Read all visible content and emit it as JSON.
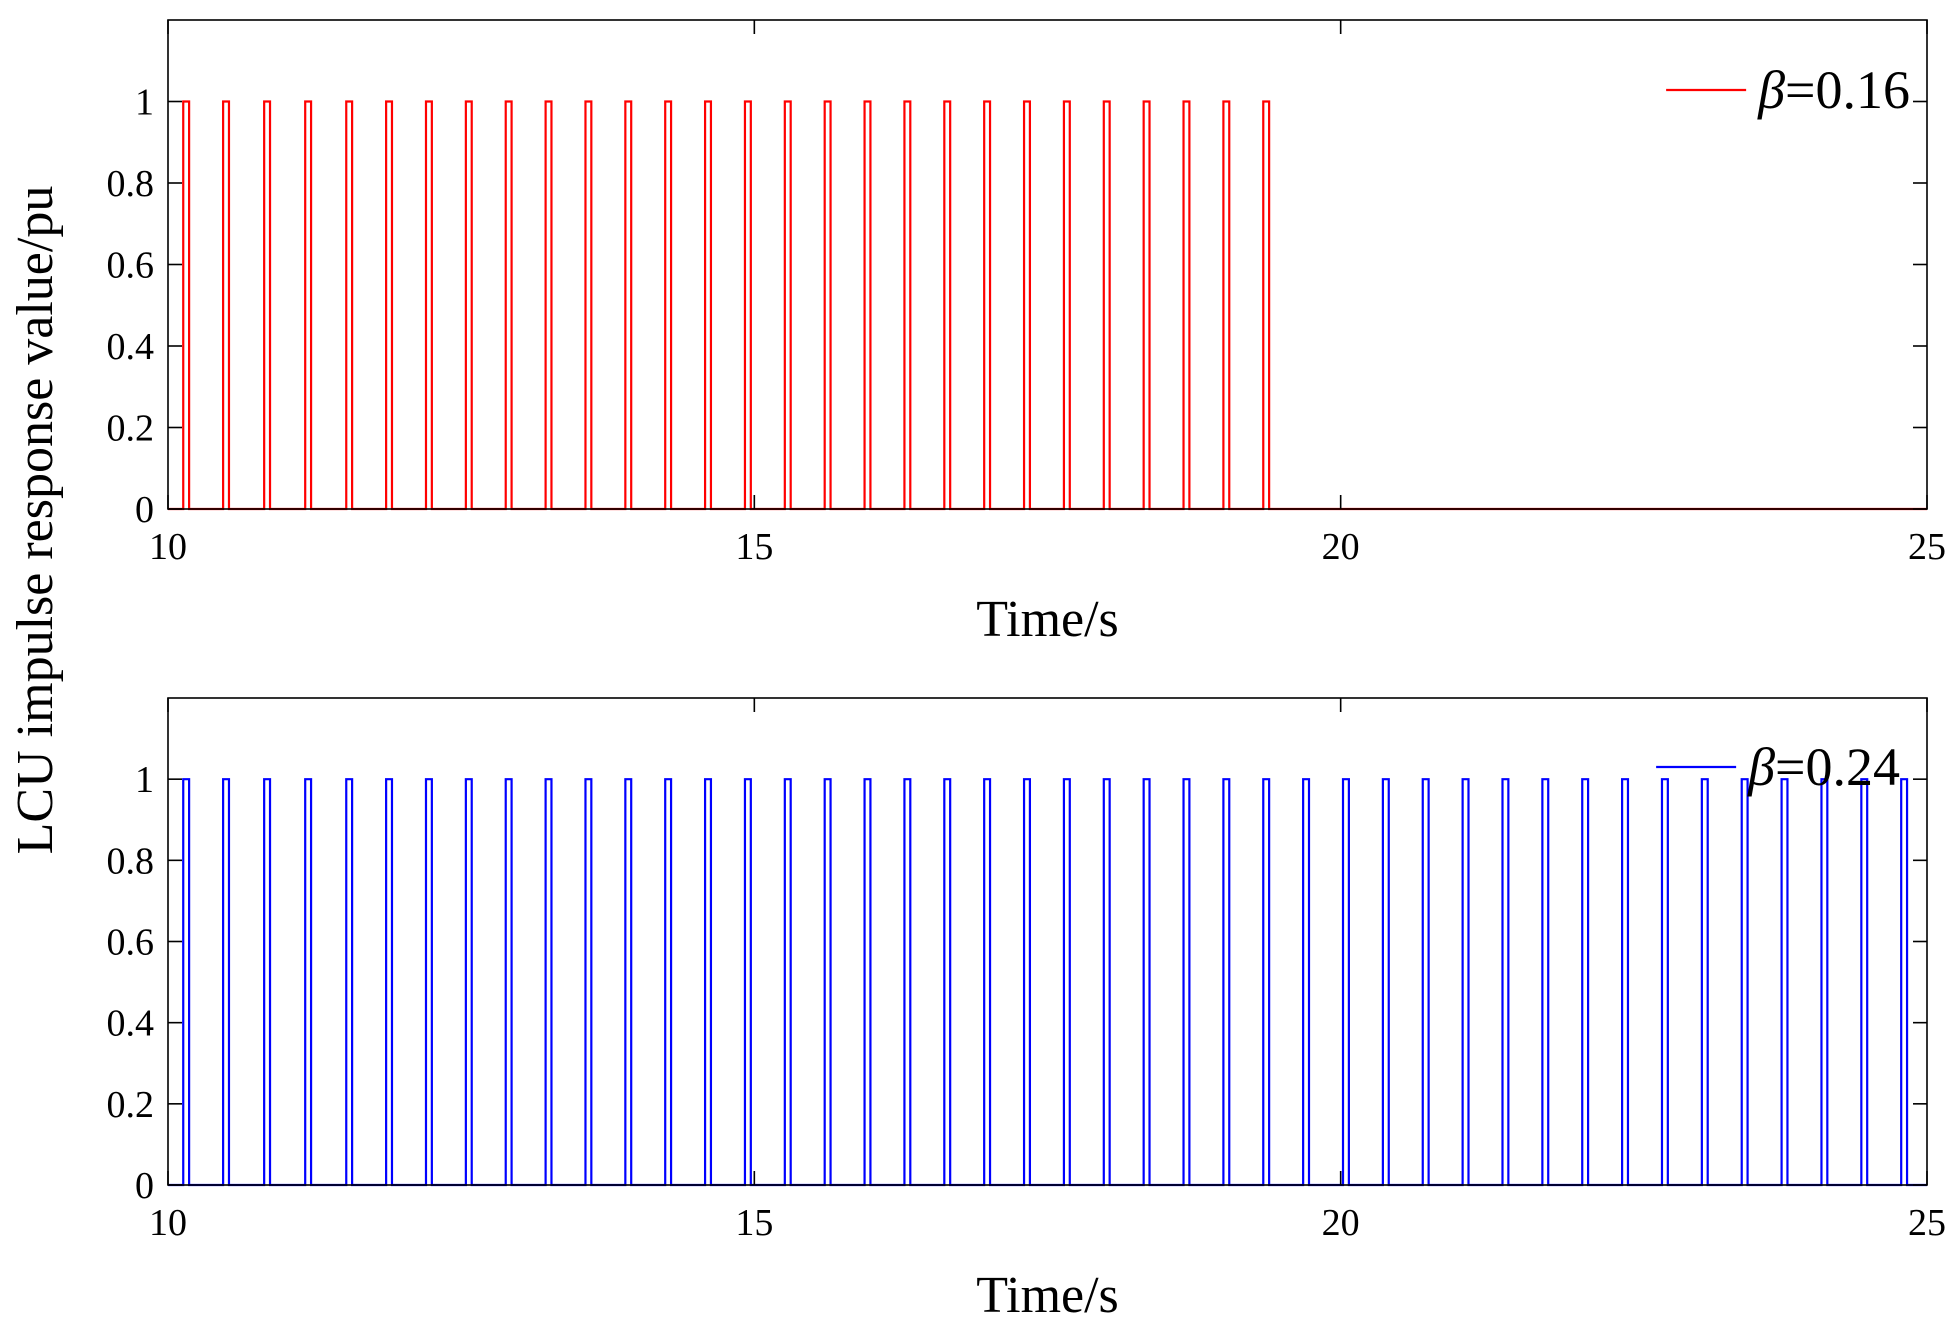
{
  "figure": {
    "shared_ylabel": "LCU impulse response value/pu"
  },
  "chart_data": [
    {
      "type": "line",
      "xlabel": "Time/s",
      "ylabel": "LCU impulse response value/pu",
      "xlim": [
        10,
        25
      ],
      "ylim": [
        0,
        1.2
      ],
      "xticks": [
        "10",
        "15",
        "20",
        "25"
      ],
      "yticks": [
        "0",
        "0.2",
        "0.4",
        "0.6",
        "0.8",
        "1"
      ],
      "grid": false,
      "legend_position": "top-right",
      "series": [
        {
          "name": "β=0.16",
          "legend_symbol": "β",
          "legend_value": "=0.16",
          "color": "#ff0000",
          "pulse_width": 0.05,
          "pulse_starts": [
            10.13,
            10.47,
            10.82,
            11.17,
            11.52,
            11.86,
            12.2,
            12.54,
            12.88,
            13.22,
            13.56,
            13.9,
            14.24,
            14.58,
            14.92,
            15.26,
            15.6,
            15.94,
            16.28,
            16.62,
            16.96,
            17.3,
            17.64,
            17.98,
            18.32,
            18.66,
            19.0,
            19.34
          ]
        }
      ]
    },
    {
      "type": "line",
      "xlabel": "Time/s",
      "ylabel": "LCU impulse response value/pu",
      "xlim": [
        10,
        25
      ],
      "ylim": [
        0,
        1.2
      ],
      "xticks": [
        "10",
        "15",
        "20",
        "25"
      ],
      "yticks": [
        "0",
        "0.2",
        "0.4",
        "0.6",
        "0.8",
        "1"
      ],
      "grid": false,
      "legend_position": "top-right",
      "series": [
        {
          "name": "β=0.24",
          "legend_symbol": "β",
          "legend_value": "=0.24",
          "color": "#0000ff",
          "pulse_width": 0.05,
          "pulse_starts": [
            10.13,
            10.47,
            10.82,
            11.17,
            11.52,
            11.86,
            12.2,
            12.54,
            12.88,
            13.22,
            13.56,
            13.9,
            14.24,
            14.58,
            14.92,
            15.26,
            15.6,
            15.94,
            16.28,
            16.62,
            16.96,
            17.3,
            17.64,
            17.98,
            18.32,
            18.66,
            19.0,
            19.34,
            19.68,
            20.02,
            20.36,
            20.7,
            21.04,
            21.38,
            21.72,
            22.06,
            22.4,
            22.74,
            23.08,
            23.42,
            23.76,
            24.1,
            24.44,
            24.78
          ]
        }
      ]
    }
  ]
}
